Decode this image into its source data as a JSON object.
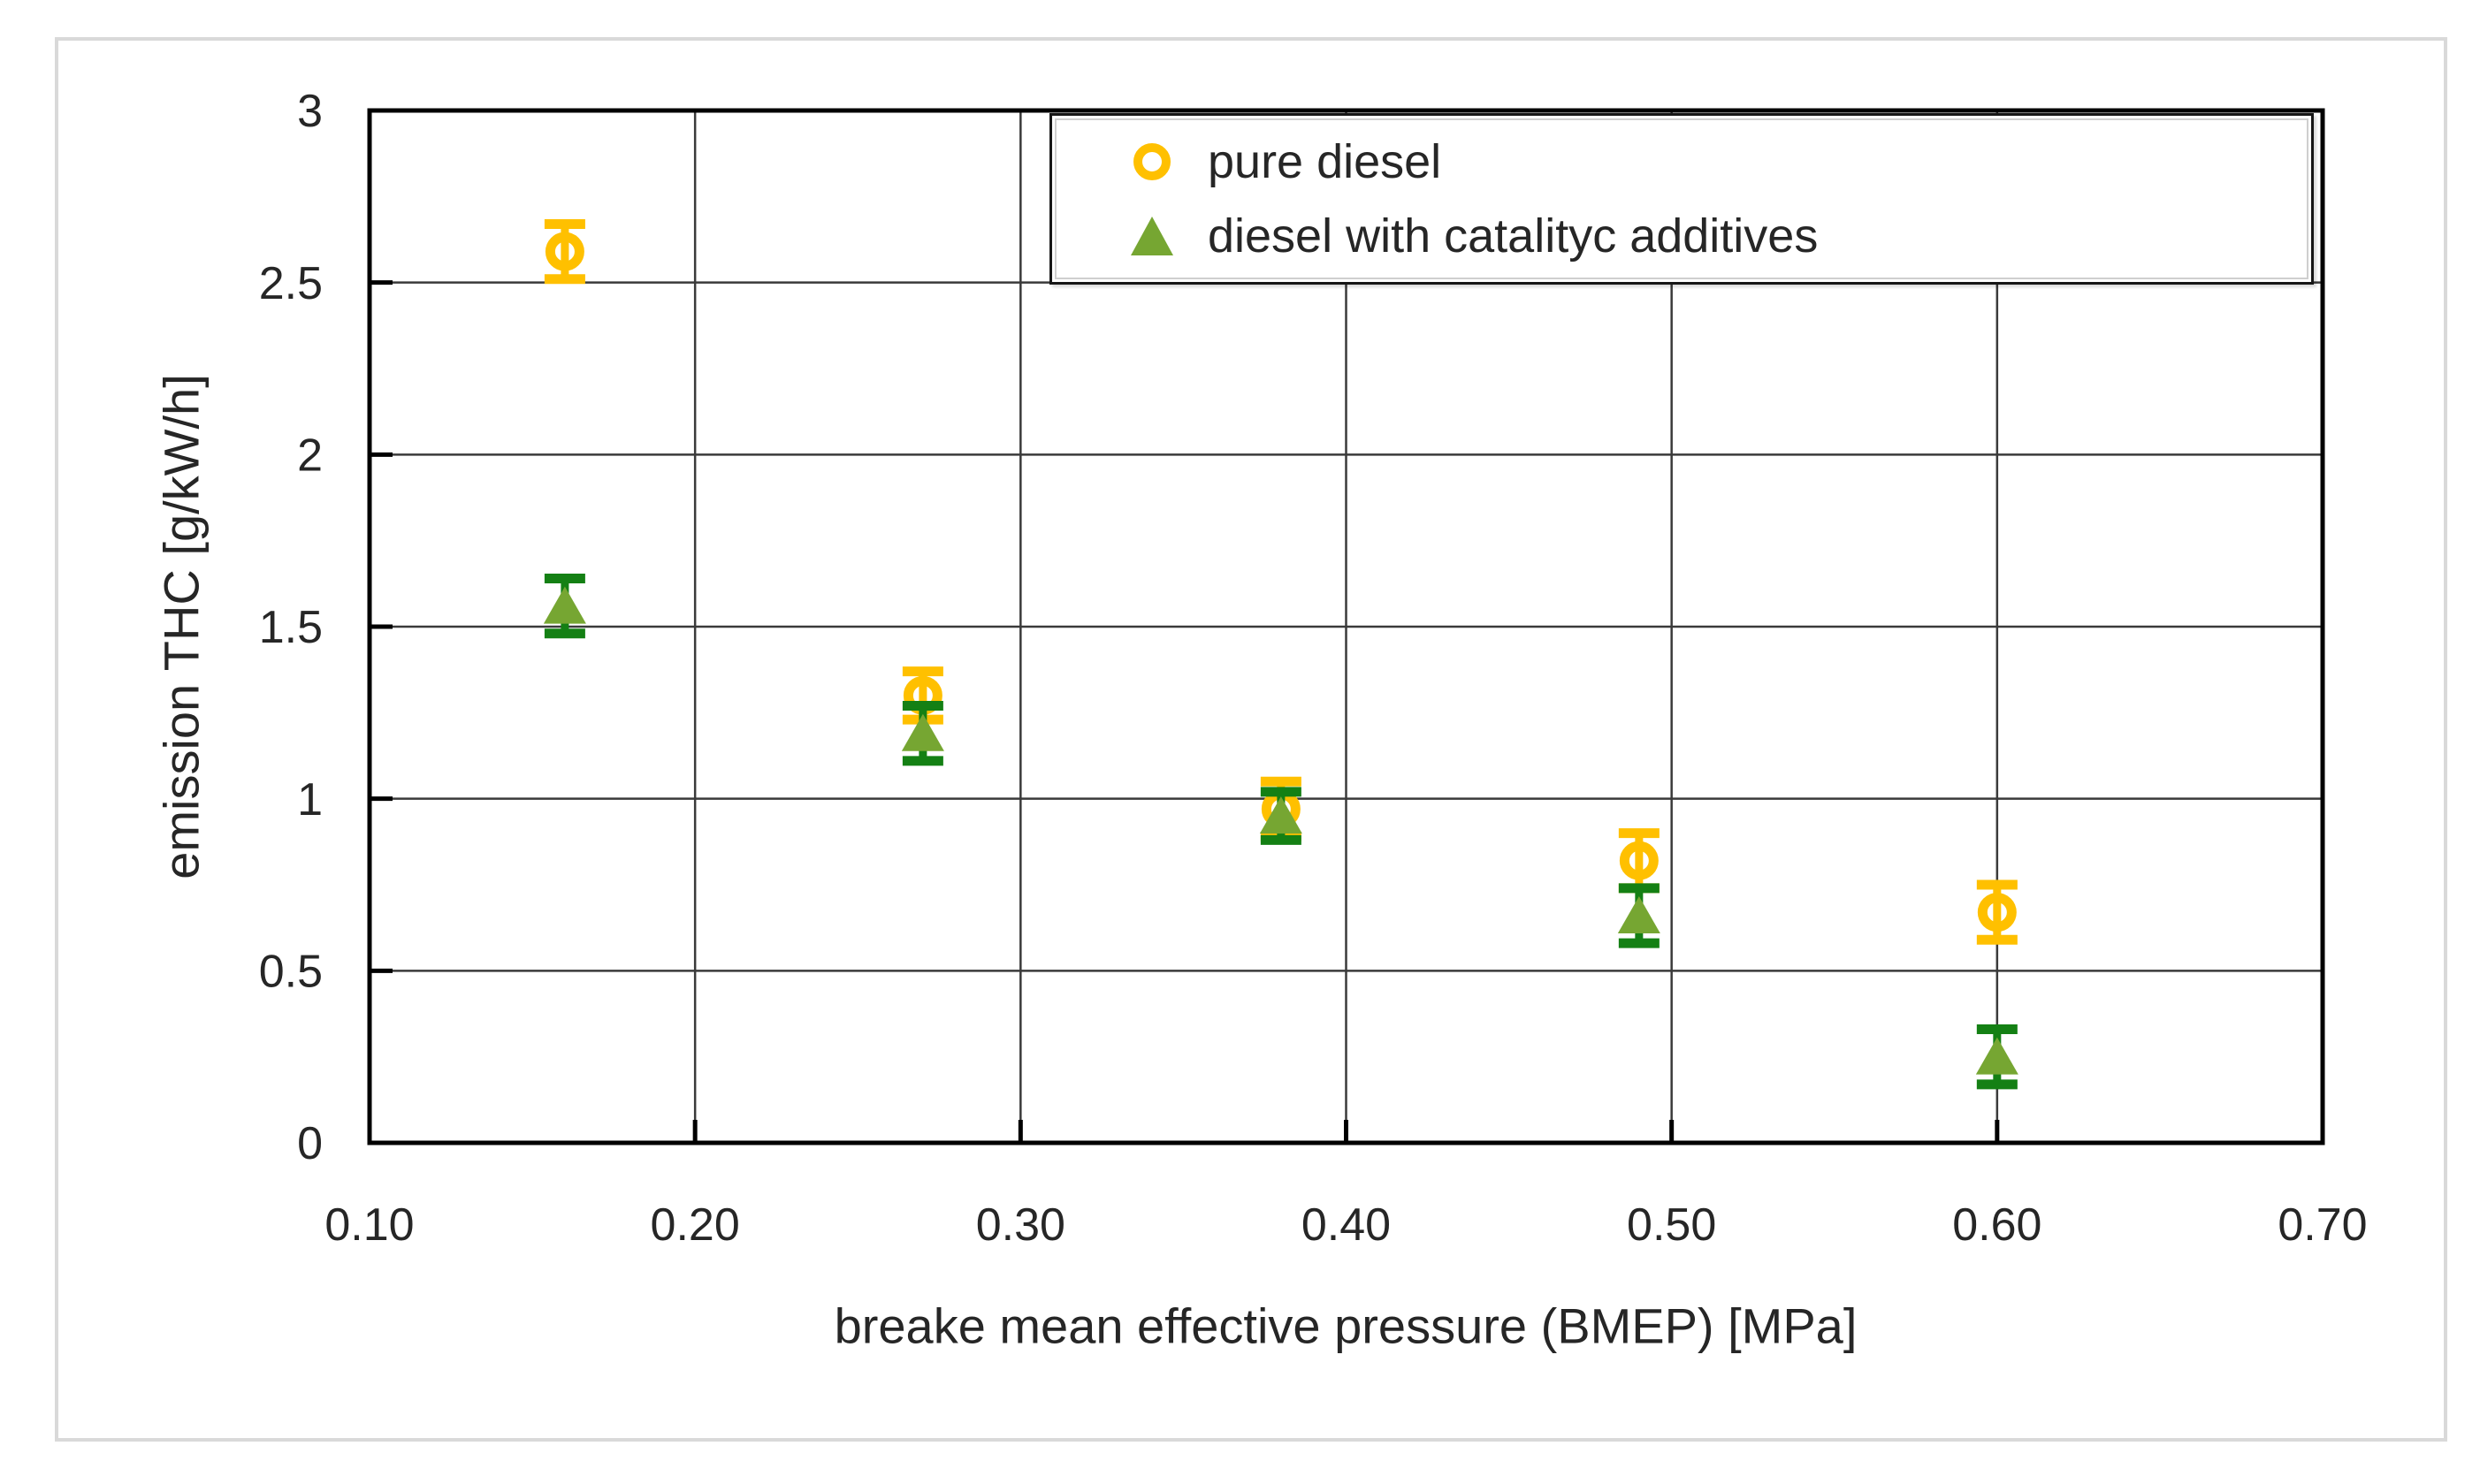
{
  "figure": {
    "background": "#ffffff",
    "frame_border_color": "#d9d9d9",
    "axis_color": "#000000",
    "gridline_color": "#3a3a3a",
    "text_color": "#262626"
  },
  "chart_data": {
    "type": "scatter",
    "title": "",
    "xlabel": "breake mean effective pressure (BMEP) [MPa]",
    "ylabel": "emission THC [g/kW/h]",
    "xlim": [
      0.1,
      0.7
    ],
    "ylim": [
      0,
      3
    ],
    "xticks": [
      "0.10",
      "0.20",
      "0.30",
      "0.40",
      "0.50",
      "0.60",
      "0.70"
    ],
    "yticks": [
      "0",
      "0.5",
      "1",
      "1.5",
      "2",
      "2.5",
      "3"
    ],
    "grid": true,
    "legend_position": "top-right-inside",
    "series": [
      {
        "name": "pure diesel",
        "marker": "circle-open",
        "color": "#FFC000",
        "error_color": "#FFC000",
        "x": [
          0.16,
          0.27,
          0.38,
          0.49,
          0.6
        ],
        "y": [
          2.59,
          1.3,
          0.97,
          0.82,
          0.67
        ],
        "yerr": [
          0.08,
          0.07,
          0.08,
          0.08,
          0.08
        ]
      },
      {
        "name": "diesel with catalityc additives",
        "marker": "triangle-filled",
        "color": "#76A632",
        "error_color": "#148014",
        "x": [
          0.16,
          0.27,
          0.38,
          0.49,
          0.6
        ],
        "y": [
          1.56,
          1.19,
          0.95,
          0.66,
          0.25
        ],
        "yerr": [
          0.08,
          0.08,
          0.07,
          0.08,
          0.08
        ]
      }
    ]
  }
}
